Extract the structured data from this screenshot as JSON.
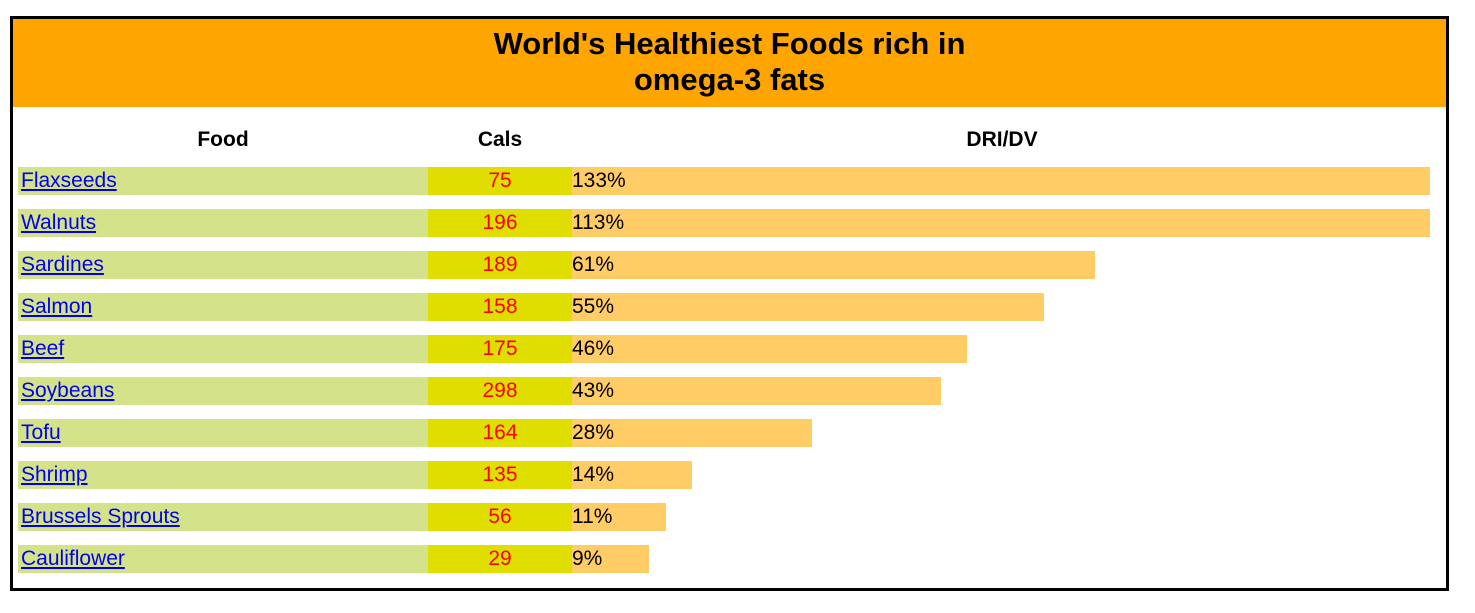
{
  "title": {
    "line1": "World's Healthiest Foods rich in",
    "line2": "omega-3 fats"
  },
  "columns": {
    "food": "Food",
    "cals": "Cals",
    "dri": "DRI/DV"
  },
  "colors": {
    "title_bg": "#ffa500",
    "food_bg": "#d4e38a",
    "cals_bg": "#e0dd00",
    "cals_text": "#ff0000",
    "dri_bar": "#ffcc66",
    "link": "#0000ee"
  },
  "rows": [
    {
      "food": "Flaxseeds",
      "cals": "75",
      "dri": "133%",
      "dri_value": 133
    },
    {
      "food": "Walnuts",
      "cals": "196",
      "dri": "113%",
      "dri_value": 113
    },
    {
      "food": "Sardines",
      "cals": "189",
      "dri": "61%",
      "dri_value": 61
    },
    {
      "food": "Salmon",
      "cals": "158",
      "dri": "55%",
      "dri_value": 55
    },
    {
      "food": "Beef",
      "cals": "175",
      "dri": "46%",
      "dri_value": 46
    },
    {
      "food": "Soybeans",
      "cals": "298",
      "dri": "43%",
      "dri_value": 43
    },
    {
      "food": "Tofu",
      "cals": "164",
      "dri": "28%",
      "dri_value": 28
    },
    {
      "food": "Shrimp",
      "cals": "135",
      "dri": "14%",
      "dri_value": 14
    },
    {
      "food": "Brussels Sprouts",
      "cals": "56",
      "dri": "11%",
      "dri_value": 11
    },
    {
      "food": "Cauliflower",
      "cals": "29",
      "dri": "9%",
      "dri_value": 9
    }
  ]
}
